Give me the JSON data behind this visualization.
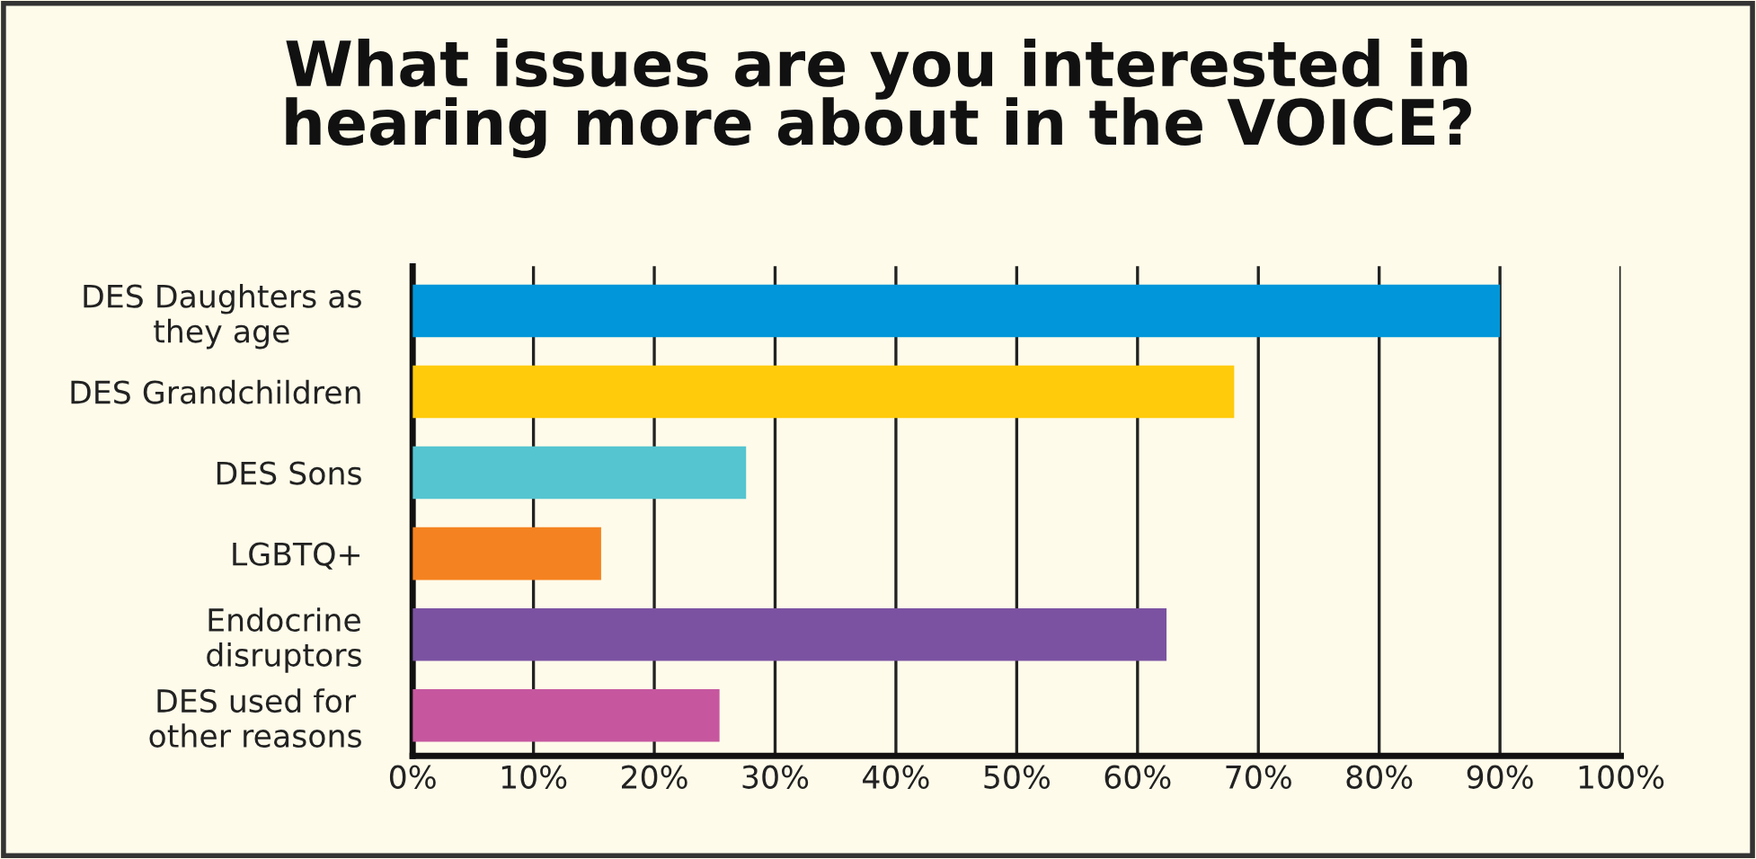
{
  "chart_data": {
    "type": "bar",
    "orientation": "horizontal",
    "title": "What issues are you interested in\nhearing more about in the VOICE?",
    "categories": [
      "DES Daughters as\nthey age",
      "DES Grandchildren",
      "DES Sons",
      "LGBTQ+",
      "Endocrine\ndisruptors",
      "DES used for\nother reasons"
    ],
    "values": [
      90,
      68,
      27.6,
      15.6,
      62.4,
      25.4
    ],
    "colors": [
      "#0096d9",
      "#ffcb0b",
      "#55c5d0",
      "#f58220",
      "#7b52a1",
      "#c6579f"
    ],
    "xlim": [
      0,
      100
    ],
    "xticks": [
      {
        "value": 0,
        "label": "0%"
      },
      {
        "value": 10,
        "label": "10%"
      },
      {
        "value": 20,
        "label": "20%"
      },
      {
        "value": 30,
        "label": "30%"
      },
      {
        "value": 40,
        "label": "40%"
      },
      {
        "value": 50,
        "label": "50%"
      },
      {
        "value": 60,
        "label": "60%"
      },
      {
        "value": 70,
        "label": "70%"
      },
      {
        "value": 80,
        "label": "80%"
      },
      {
        "value": 90,
        "label": "90%"
      },
      {
        "value": 100,
        "label": "100%"
      }
    ],
    "grid": "x",
    "legend": false
  }
}
